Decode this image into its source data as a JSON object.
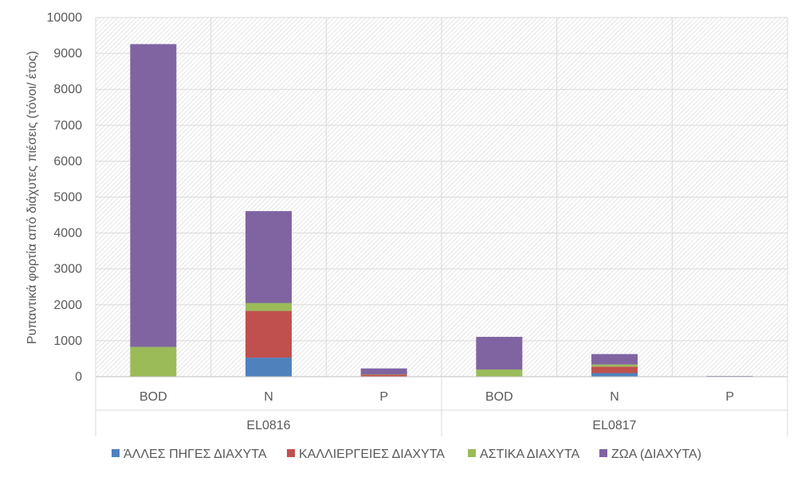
{
  "chart_data": {
    "type": "bar",
    "stacked": true,
    "ylabel": "Ρυπαντικά φορτία από διάχυτες πιέσεις (τόνοι/ έτος)",
    "ylim": [
      0,
      10000
    ],
    "yticks": [
      0,
      1000,
      2000,
      3000,
      4000,
      5000,
      6000,
      7000,
      8000,
      9000,
      10000
    ],
    "groups": [
      {
        "name": "EL0816",
        "categories": [
          "BOD",
          "N",
          "P"
        ]
      },
      {
        "name": "EL0817",
        "categories": [
          "BOD",
          "N",
          "P"
        ]
      }
    ],
    "categories": [
      "BOD",
      "N",
      "P",
      "BOD",
      "N",
      "P"
    ],
    "series": [
      {
        "name": "ΆΛΛΕΣ ΠΗΓΕΣ ΔΙΑΧΥΤΑ",
        "color": "#4F81BD",
        "values": [
          0,
          530,
          10,
          0,
          100,
          2
        ]
      },
      {
        "name": "ΚΑΛΛΙΕΡΓΕΙΕΣ ΔΙΑΧΥΤΑ",
        "color": "#C0504D",
        "values": [
          0,
          1300,
          50,
          0,
          180,
          3
        ]
      },
      {
        "name": "ΑΣΤΙΚΑ ΔΙΑΧΥΤΑ",
        "color": "#9BBB59",
        "values": [
          830,
          220,
          5,
          200,
          60,
          1
        ]
      },
      {
        "name": "ΖΩΑ (ΔΙΑΧΥΤΑ)",
        "color": "#8064A2",
        "values": [
          8430,
          2560,
          165,
          910,
          290,
          14
        ]
      }
    ],
    "grid": true,
    "legend": "bottom"
  }
}
